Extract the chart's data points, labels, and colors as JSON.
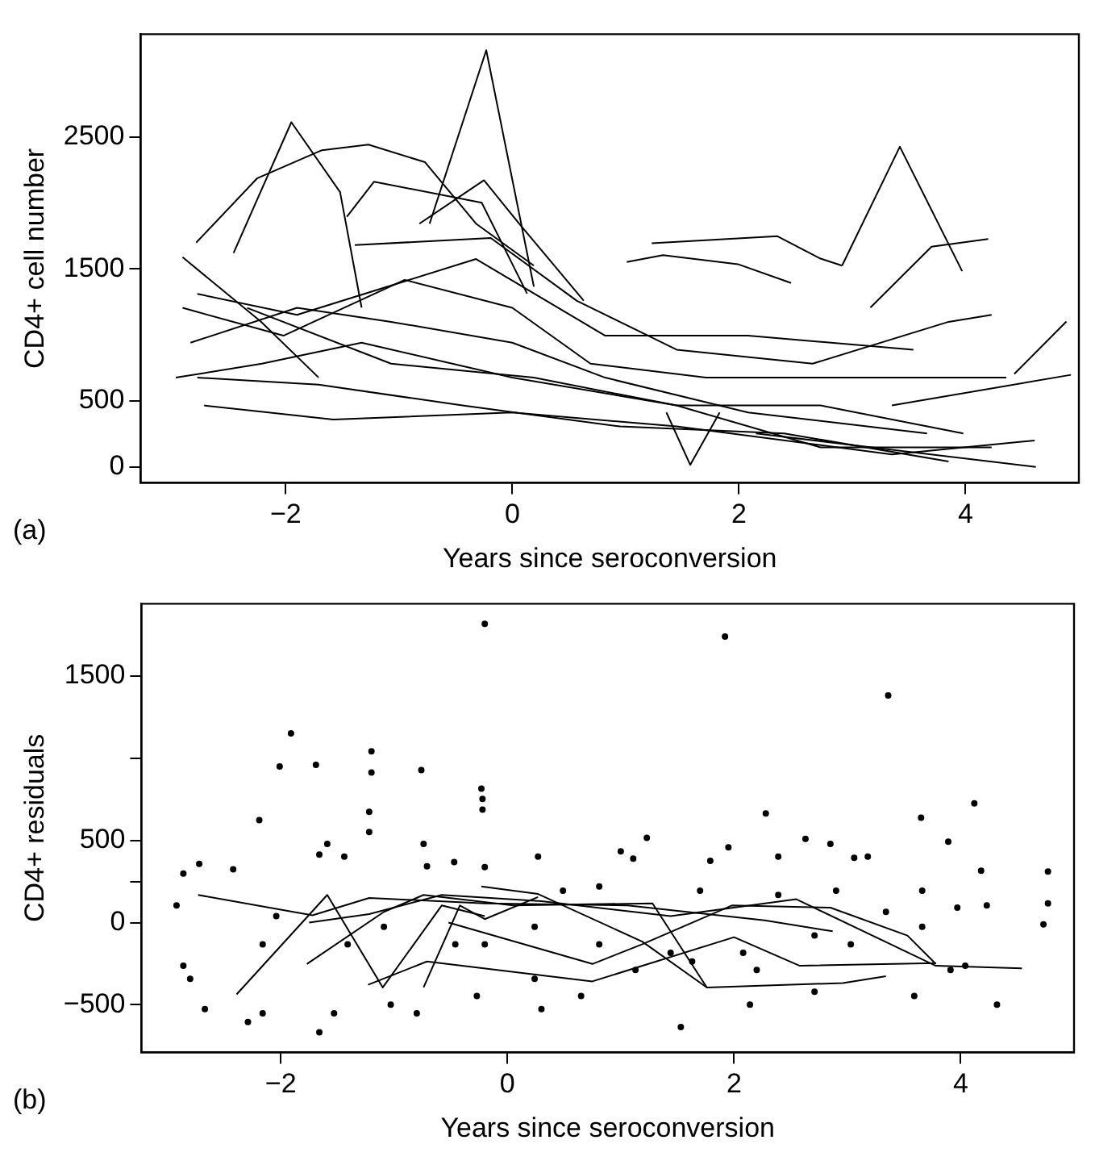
{
  "chart_data": [
    {
      "type": "line",
      "xlabel": "Years since seroconversion",
      "ylabel": "CD4+ cell number",
      "annotations": [
        "(a)"
      ],
      "xlim": [
        -3.28,
        5.0
      ],
      "ylim": [
        -120,
        3280
      ],
      "xticks": [
        -2,
        0,
        2,
        4
      ],
      "yticks": [
        0,
        500,
        1500,
        2500
      ],
      "grid": false,
      "legend": false,
      "marker": "none",
      "series": [
        {
          "color": "#000000",
          "x": [
            -0.73,
            -0.23,
            0.19
          ],
          "values": [
            1844,
            3159,
            1367
          ]
        },
        {
          "color": "#000000",
          "x": [
            -2.79,
            -2.25,
            -1.68,
            -1.27,
            -0.77,
            -0.32,
            0.19
          ],
          "values": [
            1700,
            2189,
            2401,
            2443,
            2310,
            1844,
            1526
          ]
        },
        {
          "color": "#000000",
          "x": [
            -2.46,
            -1.95,
            -1.52,
            -1.33
          ],
          "values": [
            1622,
            2613,
            2083,
            1208
          ]
        },
        {
          "color": "#000000",
          "x": [
            2.91,
            3.42,
            3.97
          ],
          "values": [
            1526,
            2427,
            1484
          ]
        },
        {
          "color": "#000000",
          "x": [
            1.23,
            2.34,
            2.72,
            2.91
          ],
          "values": [
            1696,
            1749,
            1579,
            1526
          ]
        },
        {
          "color": "#000000",
          "x": [
            3.16,
            3.7,
            4.2
          ],
          "values": [
            1208,
            1670,
            1728
          ]
        },
        {
          "color": "#000000",
          "x": [
            -2.91,
            -2.22,
            -1.71
          ],
          "values": [
            1590,
            1102,
            678
          ]
        },
        {
          "color": "#000000",
          "x": [
            1.36,
            1.57,
            1.83
          ],
          "values": [
            413,
            16,
            413
          ]
        },
        {
          "color": "#000000",
          "x": [
            4.43,
            4.89
          ],
          "values": [
            705,
            1102
          ]
        },
        {
          "color": "#000000",
          "x": [
            2.15,
            4.62
          ],
          "values": [
            254,
            0
          ]
        },
        {
          "color": "#000000",
          "x": [
            -1.46,
            -1.22,
            -0.27,
            0.13
          ],
          "values": [
            1897,
            2162,
            2003,
            1314
          ]
        },
        {
          "color": "#000000",
          "x": [
            -0.82,
            -0.25,
            0.06,
            0.63
          ],
          "values": [
            1844,
            2173,
            1844,
            1261
          ]
        },
        {
          "color": "#000000",
          "x": [
            1.01,
            1.33,
            1.99,
            2.46
          ],
          "values": [
            1553,
            1606,
            1537,
            1394
          ]
        },
        {
          "color": "#000000",
          "x": [
            -2.97,
            -2.21,
            -1.33,
            0,
            1.45,
            2.72,
            4.23
          ],
          "values": [
            677,
            783,
            942,
            677,
            466,
            148,
            148
          ]
        },
        {
          "color": "#000000",
          "x": [
            -2.84,
            -1.9,
            -1.07,
            0,
            0.82,
            2.08,
            3.66
          ],
          "values": [
            942,
            1206,
            1100,
            942,
            677,
            413,
            254
          ]
        },
        {
          "color": "#000000",
          "x": [
            -2.72,
            -1.58,
            0,
            1.45,
            3.35,
            4.61
          ],
          "values": [
            466,
            360,
            413,
            307,
            95,
            201
          ]
        },
        {
          "color": "#000000",
          "x": [
            -2.78,
            -1.71,
            -0.44,
            0.95,
            2.4,
            3.85
          ],
          "values": [
            677,
            624,
            466,
            307,
            254,
            42
          ]
        },
        {
          "color": "#000000",
          "x": [
            -2.34,
            -1.07,
            0.19,
            1.45,
            2.72,
            3.98
          ],
          "values": [
            1206,
            783,
            677,
            466,
            466,
            254
          ]
        },
        {
          "color": "#000000",
          "x": [
            3.35,
            4.93
          ],
          "values": [
            466,
            698
          ]
        },
        {
          "color": "#000000",
          "x": [
            -2.91,
            -2.02,
            -0.95,
            0,
            0.69,
            1.71,
            3.22,
            4.36
          ],
          "values": [
            1206,
            995,
            1418,
            1206,
            783,
            677,
            677,
            677
          ]
        },
        {
          "color": "#000000",
          "x": [
            -1.39,
            -0.19,
            0.57,
            1.45,
            2.65,
            3.85,
            4.23
          ],
          "values": [
            1682,
            1735,
            1259,
            889,
            783,
            1100,
            1153
          ]
        },
        {
          "color": "#000000",
          "x": [
            -2.78,
            -1.9,
            -0.32,
            0.82,
            2.08,
            3.54
          ],
          "values": [
            1312,
            1153,
            1576,
            995,
            995,
            889
          ]
        }
      ]
    },
    {
      "type": "line",
      "xlabel": "Years since seroconversion",
      "ylabel": "CD4+ residuals",
      "annotations": [
        "(b)"
      ],
      "xlim": [
        -3.23,
        5.0
      ],
      "ylim": [
        -790,
        1940
      ],
      "xticks": [
        -2,
        0,
        2,
        4
      ],
      "yticks": [
        -500,
        0,
        {
          "value": 250,
          "label": null
        },
        500,
        {
          "value": 1000,
          "label": null
        },
        1500
      ],
      "grid": false,
      "legend": false,
      "series": [
        {
          "color": "#000000",
          "x": [
            -2.73,
            -1.72,
            -1.22,
            -0.2,
            1.06,
            2.27,
            2.87
          ],
          "values": [
            168,
            44,
            150,
            117,
            104,
            13,
            -53
          ]
        },
        {
          "color": "#000000",
          "x": [
            -2.39,
            -1.59,
            -1.1,
            -0.58,
            -0.2
          ],
          "values": [
            -437,
            168,
            -395,
            104,
            39
          ]
        },
        {
          "color": "#000000",
          "x": [
            -1.75,
            -1.22,
            -0.58,
            0.3,
            1.44,
            2.55,
            3.78,
            4.54
          ],
          "values": [
            0,
            52,
            168,
            130,
            39,
            142,
            -263,
            -279
          ]
        },
        {
          "color": "#000000",
          "x": [
            -1.77,
            -1.09,
            -0.74,
            0.05,
            1.28,
            1.76,
            2.96,
            3.34
          ],
          "values": [
            -252,
            65,
            168,
            104,
            117,
            -395,
            -368,
            -326
          ]
        },
        {
          "color": "#000000",
          "x": [
            -1.23,
            -0.71,
            0.75,
            2.0,
            2.58,
            3.78
          ],
          "values": [
            -379,
            -237,
            -358,
            -89,
            -263,
            -247
          ]
        },
        {
          "color": "#000000",
          "x": [
            -0.52,
            0.75,
            1.19,
            1.98,
            2.85,
            3.53,
            3.78
          ],
          "values": [
            0,
            -252,
            -132,
            104,
            91,
            -79,
            -252
          ]
        },
        {
          "color": "#000000",
          "x": [
            -0.23,
            0.27,
            1.19,
            1.76
          ],
          "values": [
            220,
            174,
            -116,
            -395
          ]
        },
        {
          "color": "#000000",
          "x": [
            -0.74,
            -0.42,
            -0.2,
            0.27
          ],
          "values": [
            -395,
            104,
            21,
            155
          ]
        },
        {
          "type": "scatter",
          "color": "#000000",
          "x": [
            -0.2,
            1.92,
            3.36,
            -1.91,
            -2.01,
            -1.69,
            -1.2,
            -1.2,
            -1.22,
            -1.22,
            -0.76,
            -0.23,
            -0.22,
            -0.22,
            -2.19,
            2.28,
            4.12,
            3.65,
            3.89,
            2.63,
            2.85,
            1.23,
            -1.59,
            -0.74,
            -2.86,
            -2.72,
            -2.42,
            -1.66,
            -1.44,
            -0.71,
            -0.47,
            -0.2,
            0.27,
            1.0,
            1.11,
            1.95,
            1.79,
            2.39,
            3.06,
            3.18,
            4.77,
            4.18,
            4.77,
            4.23,
            3.97,
            4.73,
            -2.92,
            -2.86,
            -2.8,
            -2.67,
            -2.29,
            -2.16,
            -1.66,
            -1.53,
            -1.03,
            -0.8,
            -0.27,
            0.3,
            0.65,
            1.53,
            2.14,
            2.71,
            3.59,
            4.32,
            4.04,
            3.91,
            0.81,
            1.44,
            2.08,
            2.71,
            3.03,
            3.34,
            2.9,
            2.39,
            1.7,
            0.81,
            0.49,
            -1.09,
            -2.16,
            -2.04,
            -1.41,
            -0.46,
            -0.2,
            0.24,
            0.24,
            1.13,
            1.63,
            2.2,
            3.66,
            3.66
          ],
          "values": [
            1818,
            1741,
            1382,
            1151,
            950,
            960,
            1042,
            913,
            674,
            551,
            928,
            815,
            753,
            687,
            623,
            664,
            726,
            638,
            492,
            510,
            479,
            515,
            479,
            479,
            298,
            357,
            324,
            414,
            401,
            342,
            368,
            337,
            401,
            433,
            389,
            458,
            376,
            401,
            394,
            401,
            311,
            316,
            117,
            104,
            91,
            -11,
            104,
            -263,
            -342,
            -526,
            -605,
            -552,
            -668,
            -552,
            -500,
            -552,
            -447,
            -526,
            -447,
            -636,
            -500,
            -421,
            -447,
            -500,
            -263,
            -289,
            -132,
            -184,
            -184,
            -79,
            -132,
            65,
            194,
            168,
            194,
            220,
            194,
            -26,
            -132,
            39,
            -132,
            -132,
            -132,
            -26,
            -342,
            -289,
            -237,
            -289,
            -26,
            194
          ]
        }
      ]
    }
  ]
}
